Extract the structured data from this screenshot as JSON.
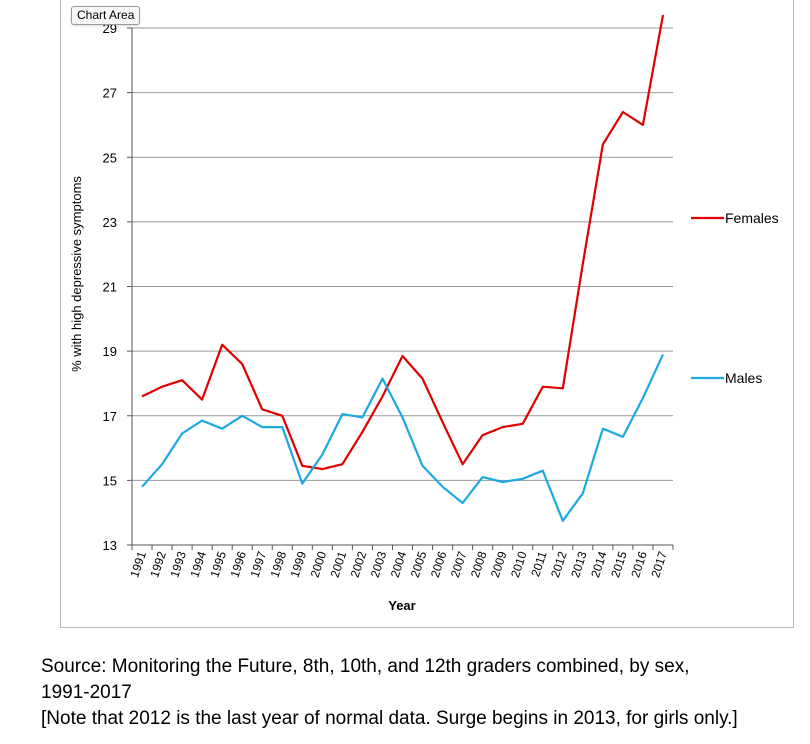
{
  "tooltip": "Chart Area",
  "chart_data": {
    "type": "line",
    "title": "",
    "xlabel": "Year",
    "ylabel": "% with high depressive symptoms",
    "ylim": [
      13,
      29
    ],
    "yticks": [
      13,
      15,
      17,
      19,
      21,
      23,
      25,
      27,
      29
    ],
    "grid": true,
    "legend_position": "right",
    "categories": [
      "1991",
      "1992",
      "1993",
      "1994",
      "1995",
      "1996",
      "1997",
      "1998",
      "1999",
      "2000",
      "2001",
      "2002",
      "2003",
      "2004",
      "2005",
      "2006",
      "2007",
      "2008",
      "2009",
      "2010",
      "2011",
      "2012",
      "2013",
      "2014",
      "2015",
      "2016",
      "2017"
    ],
    "series": [
      {
        "name": "Females",
        "color": "#e00000",
        "values": [
          17.6,
          17.9,
          18.1,
          17.5,
          19.2,
          18.6,
          17.2,
          17.0,
          15.45,
          15.35,
          15.5,
          16.5,
          17.6,
          18.85,
          18.15,
          16.8,
          15.5,
          16.4,
          16.65,
          16.75,
          17.9,
          17.85,
          21.7,
          25.4,
          26.4,
          26.0,
          29.4
        ]
      },
      {
        "name": "Males",
        "color": "#1ca8e0",
        "values": [
          14.8,
          15.5,
          16.45,
          16.85,
          16.6,
          17.0,
          16.65,
          16.65,
          14.9,
          15.8,
          17.05,
          16.95,
          18.15,
          16.95,
          15.45,
          14.8,
          14.3,
          15.1,
          14.95,
          15.05,
          15.3,
          13.75,
          14.6,
          16.6,
          16.35,
          17.55,
          18.9
        ]
      }
    ]
  },
  "caption": {
    "line1": "Source: Monitoring the Future, 8th, 10th, and 12th graders combined, by sex,",
    "line2": "1991-2017",
    "line3": "[Note that 2012 is the last year of normal data. Surge begins in 2013, for girls only.]"
  }
}
